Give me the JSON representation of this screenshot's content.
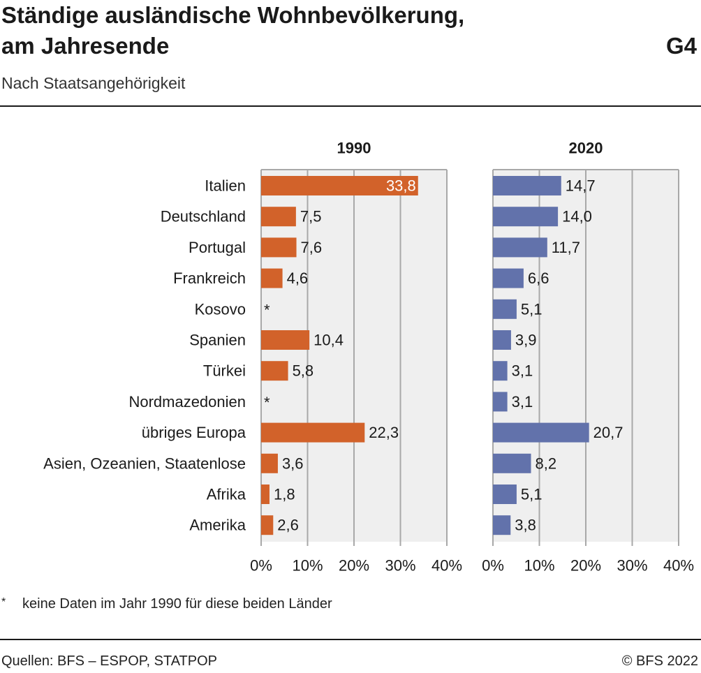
{
  "header": {
    "title_line1": "Ständige ausländische Wohnbevölkerung,",
    "title_line2": "am Jahresende",
    "code": "G4",
    "subtitle": "Nach Staatsangehörigkeit"
  },
  "footnote": {
    "mark": "*",
    "text": "keine Daten im Jahr 1990 für diese beiden Länder"
  },
  "footer": {
    "source": "Quellen: BFS – ESPOP, STATPOP",
    "copyright": "© BFS 2022"
  },
  "chart_data": {
    "type": "bar",
    "orientation": "horizontal",
    "categories": [
      "Italien",
      "Deutschland",
      "Portugal",
      "Frankreich",
      "Kosovo",
      "Spanien",
      "Türkei",
      "Nordmazedonien",
      "übriges Europa",
      "Asien, Ozeanien, Staatenlose",
      "Afrika",
      "Amerika"
    ],
    "missing_marker": "*",
    "xlim": [
      0,
      40
    ],
    "xticks": [
      "0%",
      "10%",
      "20%",
      "30%",
      "40%"
    ],
    "grid": true,
    "panels": [
      {
        "name": "1990",
        "color": "#d2622a",
        "values": [
          33.8,
          7.5,
          7.6,
          4.6,
          null,
          10.4,
          5.8,
          null,
          22.3,
          3.6,
          1.8,
          2.6
        ],
        "labels": [
          "33,8",
          "7,5",
          "7,6",
          "4,6",
          "",
          "10,4",
          "5,8",
          "",
          "22,3",
          "3,6",
          "1,8",
          "2,6"
        ]
      },
      {
        "name": "2020",
        "color": "#6272ab",
        "values": [
          14.7,
          14.0,
          11.7,
          6.6,
          5.1,
          3.9,
          3.1,
          3.1,
          20.7,
          8.2,
          5.1,
          3.8
        ],
        "labels": [
          "14,7",
          "14,0",
          "11,7",
          "6,6",
          "5,1",
          "3,9",
          "3,1",
          "3,1",
          "20,7",
          "8,2",
          "5,1",
          "3,8"
        ]
      }
    ]
  }
}
